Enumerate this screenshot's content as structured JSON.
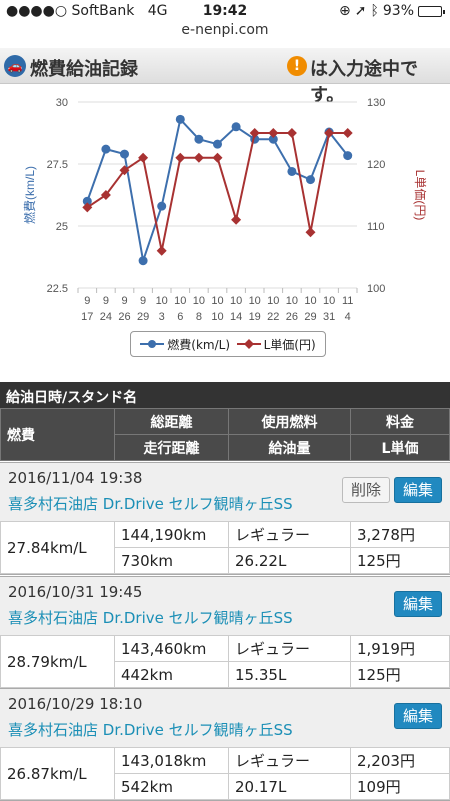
{
  "status": {
    "carrier": "SoftBank",
    "network": "4G",
    "time": "19:42",
    "battery": "93%",
    "battery_level": 0.93
  },
  "url": "e-nenpi.com",
  "header": {
    "title": "燃費給油記録",
    "warning": "は入力途中です。"
  },
  "chart_data": {
    "type": "line",
    "categories": [
      [
        "9",
        "17"
      ],
      [
        "9",
        "24"
      ],
      [
        "9",
        "26"
      ],
      [
        "9",
        "29"
      ],
      [
        "10",
        "3"
      ],
      [
        "10",
        "6"
      ],
      [
        "10",
        "8"
      ],
      [
        "10",
        "10"
      ],
      [
        "10",
        "14"
      ],
      [
        "10",
        "19"
      ],
      [
        "10",
        "22"
      ],
      [
        "10",
        "26"
      ],
      [
        "10",
        "29"
      ],
      [
        "10",
        "31"
      ],
      [
        "11",
        "4"
      ]
    ],
    "y_left": {
      "label": "燃費(km/L)",
      "ticks": [
        "30",
        "27.5",
        "25",
        "22.5"
      ],
      "ylim": [
        22.5,
        30
      ]
    },
    "y_right": {
      "label": "L単価(円)",
      "ticks": [
        "130",
        "120",
        "110",
        "100"
      ],
      "ylim": [
        100,
        130
      ]
    },
    "series": [
      {
        "name": "燃費(km/L)",
        "axis": "left",
        "color": "#3d6fad",
        "marker": "circle",
        "values": [
          26.0,
          28.1,
          27.9,
          23.6,
          25.8,
          29.3,
          28.5,
          28.3,
          29.0,
          28.5,
          28.5,
          27.2,
          26.87,
          28.79,
          27.84
        ]
      },
      {
        "name": "L単価(円)",
        "axis": "right",
        "color": "#a83232",
        "marker": "diamond",
        "values": [
          113,
          115,
          119,
          121,
          106,
          121,
          121,
          121,
          111,
          125,
          125,
          125,
          109,
          125,
          125
        ]
      }
    ],
    "grid": true,
    "legend": "bottom"
  },
  "table_header": {
    "row1": "給油日時/スタンド名",
    "fuel_eff": "燃費",
    "total_distance": "総距離",
    "fuel_type": "使用燃料",
    "price": "料金",
    "distance": "走行距離",
    "amount": "給油量",
    "unit_price": "L単価"
  },
  "buttons": {
    "delete": "削除",
    "edit": "編集"
  },
  "records": [
    {
      "datetime": "2016/11/04 19:38",
      "station": "喜多村石油店 Dr.Drive セルフ観晴ヶ丘SS",
      "fuel_eff": "27.84km/L",
      "total": "144,190km",
      "fuel": "レギュラー",
      "price": "3,278円",
      "distance": "730km",
      "amount": "26.22L",
      "unit": "125円"
    },
    {
      "datetime": "2016/10/31 19:45",
      "station": "喜多村石油店 Dr.Drive セルフ観晴ヶ丘SS",
      "fuel_eff": "28.79km/L",
      "total": "143,460km",
      "fuel": "レギュラー",
      "price": "1,919円",
      "distance": "442km",
      "amount": "15.35L",
      "unit": "125円"
    },
    {
      "datetime": "2016/10/29 18:10",
      "station": "喜多村石油店 Dr.Drive セルフ観晴ヶ丘SS",
      "fuel_eff": "26.87km/L",
      "total": "143,018km",
      "fuel": "レギュラー",
      "price": "2,203円",
      "distance": "542km",
      "amount": "20.17L",
      "unit": "109円"
    }
  ]
}
